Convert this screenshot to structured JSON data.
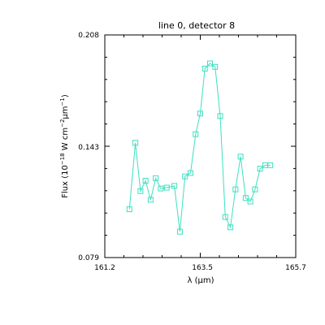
{
  "chart_data": {
    "type": "line",
    "title": "line 0, detector 8",
    "xlabel": "λ (μm)",
    "ylabel_parts": [
      "Flux (10",
      "−18",
      " W cm",
      "−2",
      "μm",
      "−1",
      ")"
    ],
    "xlim": [
      161.2,
      165.7
    ],
    "ylim": [
      0.079,
      0.208
    ],
    "x_ticks": [
      "161.2",
      "163.5",
      "165.7"
    ],
    "y_ticks": [
      "0.079",
      "0.143",
      "0.208"
    ],
    "series": [
      {
        "color": "#3de0c0",
        "marker": "open-square",
        "x": [
          161.78,
          161.92,
          162.04,
          162.16,
          162.28,
          162.4,
          162.52,
          162.66,
          162.84,
          162.97,
          163.09,
          163.22,
          163.34,
          163.45,
          163.56,
          163.68,
          163.8,
          163.92,
          164.04,
          164.16,
          164.28,
          164.4,
          164.52,
          164.63,
          164.74,
          164.86,
          164.98,
          165.1
        ],
        "y": [
          0.107,
          0.1455,
          0.1175,
          0.1235,
          0.1125,
          0.125,
          0.119,
          0.1195,
          0.1205,
          0.094,
          0.126,
          0.128,
          0.1505,
          0.1625,
          0.1885,
          0.1915,
          0.1895,
          0.161,
          0.1025,
          0.0965,
          0.1185,
          0.1375,
          0.1135,
          0.1115,
          0.1185,
          0.1305,
          0.1325,
          0.1325
        ]
      }
    ]
  }
}
